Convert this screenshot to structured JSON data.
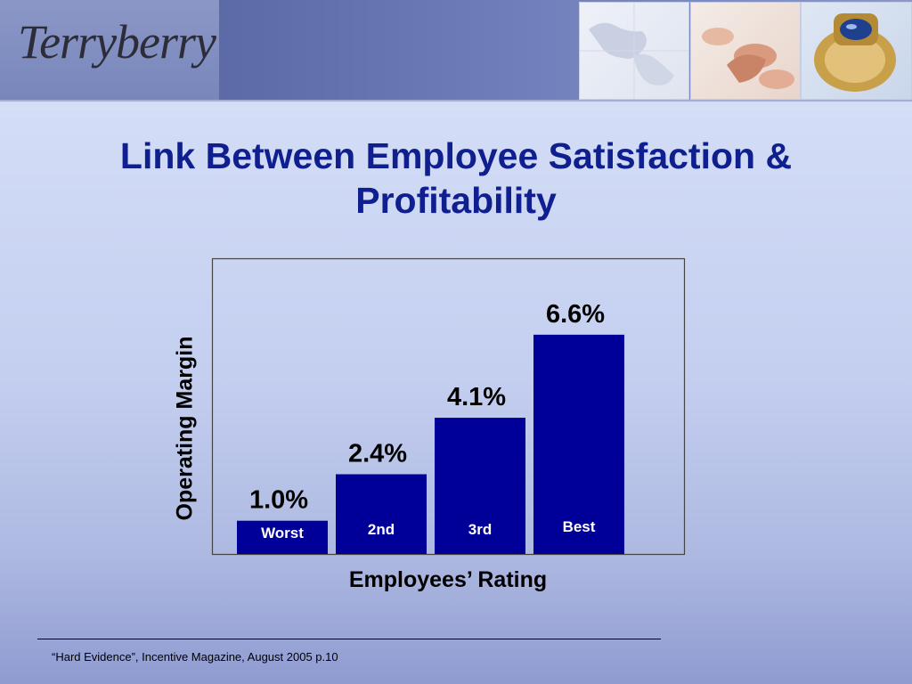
{
  "header": {
    "logo_text": "Terryberry",
    "images": [
      "map-image",
      "clapping-hands-image",
      "class-ring-image"
    ]
  },
  "title_lines": [
    "Link Between Employee Satisfaction &",
    "Profitability"
  ],
  "chart_data": {
    "type": "bar",
    "categories": [
      "Worst",
      "2nd",
      "3rd",
      "Best"
    ],
    "values": [
      1.0,
      2.4,
      4.1,
      6.6
    ],
    "value_labels": [
      "1.0%",
      "2.4%",
      "4.1%",
      "6.6%"
    ],
    "xlabel": "Employees’ Rating",
    "ylabel": "Operating Margin",
    "ylim": [
      0,
      8.5
    ],
    "grid": false,
    "bar_color": "#000099"
  },
  "source": "“Hard Evidence”, Incentive Magazine, August 2005 p.10"
}
